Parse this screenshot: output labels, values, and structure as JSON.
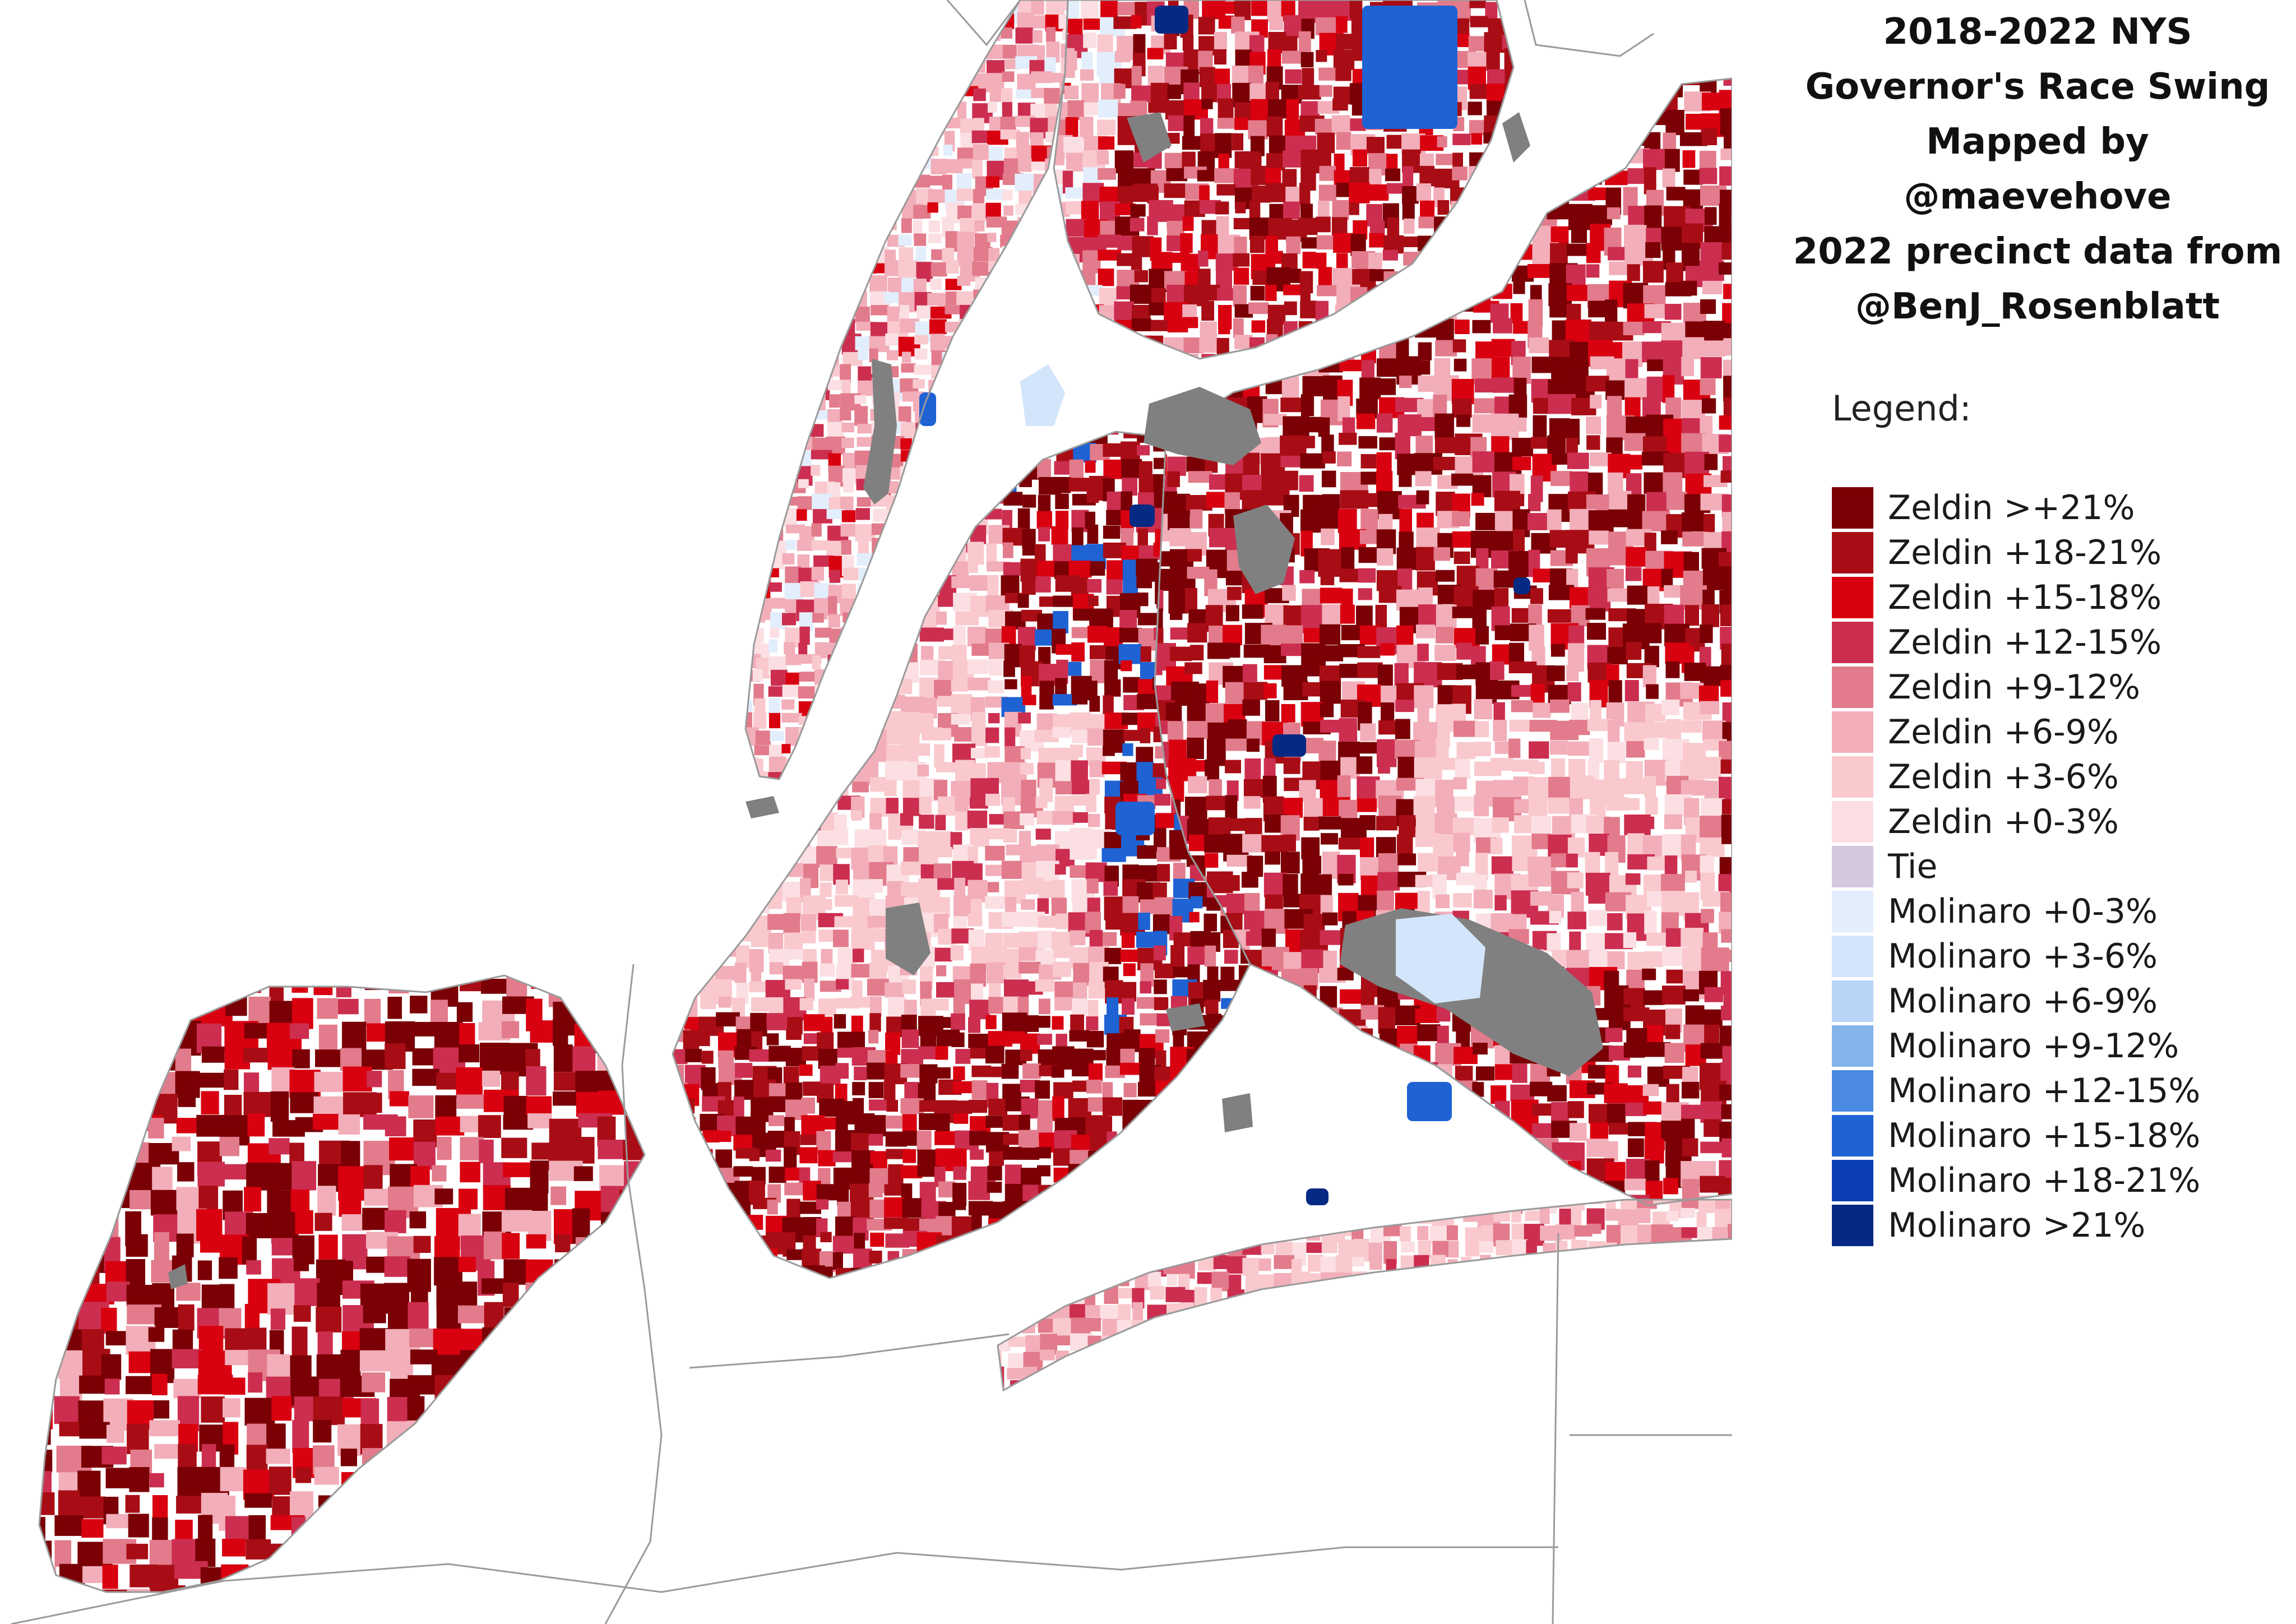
{
  "title_lines": [
    "2018-2022 NYS",
    "Governor's Race Swing",
    "Mapped by",
    "@maevehove",
    "2022 precinct data from",
    "@BenJ_Rosenblatt"
  ],
  "legend": {
    "heading": "Legend:",
    "items": [
      {
        "label": "Zeldin >+21%",
        "color": "#7a0005"
      },
      {
        "label": "Zeldin +18-21%",
        "color": "#a80d15"
      },
      {
        "label": "Zeldin +15-18%",
        "color": "#d90010"
      },
      {
        "label": "Zeldin +12-15%",
        "color": "#cc2e4f"
      },
      {
        "label": "Zeldin +9-12%",
        "color": "#e27b8b"
      },
      {
        "label": "Zeldin +6-9%",
        "color": "#f2aeb9"
      },
      {
        "label": "Zeldin +3-6%",
        "color": "#f9c9ce"
      },
      {
        "label": "Zeldin +0-3%",
        "color": "#fbdfe3"
      },
      {
        "label": "Tie",
        "color": "#d5c8de"
      },
      {
        "label": "Molinaro +0-3%",
        "color": "#e3eefc"
      },
      {
        "label": "Molinaro +3-6%",
        "color": "#d3e5fb"
      },
      {
        "label": "Molinaro +6-9%",
        "color": "#b8d4f7"
      },
      {
        "label": "Molinaro +9-12%",
        "color": "#85b3ec"
      },
      {
        "label": "Molinaro +12-15%",
        "color": "#4a8ae2"
      },
      {
        "label": "Molinaro +15-18%",
        "color": "#1e62d3"
      },
      {
        "label": "Molinaro +18-21%",
        "color": "#0b3eb5"
      },
      {
        "label": "Molinaro >21%",
        "color": "#042a83"
      }
    ]
  },
  "map_colors": {
    "no_data": "#808080",
    "water": "#ffffff",
    "outline": "#9a9a9a"
  },
  "map_regions": {
    "boroughs": [
      "Manhattan",
      "Bronx",
      "Queens",
      "Brooklyn",
      "Staten Island"
    ],
    "bronx_bias": [
      "Zeldin +18-21%",
      "Zeldin >+21%",
      "Zeldin +15-18%",
      "Zeldin +12-15%",
      "Zeldin +9-12%",
      "Zeldin +6-9%"
    ],
    "manhattan_bias": [
      "Zeldin +6-9%",
      "Zeldin +9-12%",
      "Zeldin +3-6%",
      "Zeldin +12-15%",
      "Zeldin +0-3%",
      "Zeldin +15-18%",
      "Molinaro +0-3%"
    ],
    "brooklyn_north_bias": [
      "Zeldin >+21%",
      "Zeldin +18-21%",
      "Zeldin +15-18%",
      "Zeldin +12-15%",
      "Zeldin +9-12%",
      "Molinaro +15-18%"
    ],
    "brooklyn_central_bias": [
      "Zeldin +3-6%",
      "Zeldin +6-9%",
      "Zeldin +0-3%",
      "Zeldin +9-12%",
      "Zeldin +12-15%"
    ],
    "brooklyn_south_bias": [
      "Zeldin >+21%",
      "Zeldin +18-21%",
      "Zeldin +15-18%",
      "Zeldin +12-15%",
      "Zeldin +9-12%"
    ],
    "queens_bias": [
      "Zeldin >+21%",
      "Zeldin +18-21%",
      "Zeldin +15-18%",
      "Zeldin +12-15%",
      "Zeldin +9-12%",
      "Zeldin +6-9%"
    ],
    "queens_south_bias": [
      "Zeldin +3-6%",
      "Zeldin +6-9%",
      "Zeldin +9-12%",
      "Zeldin +0-3%",
      "Zeldin +12-15%"
    ],
    "staten_island_bias": [
      "Zeldin >+21%",
      "Zeldin +15-18%",
      "Zeldin +18-21%",
      "Zeldin +12-15%",
      "Zeldin +9-12%",
      "Zeldin +6-9%"
    ]
  }
}
